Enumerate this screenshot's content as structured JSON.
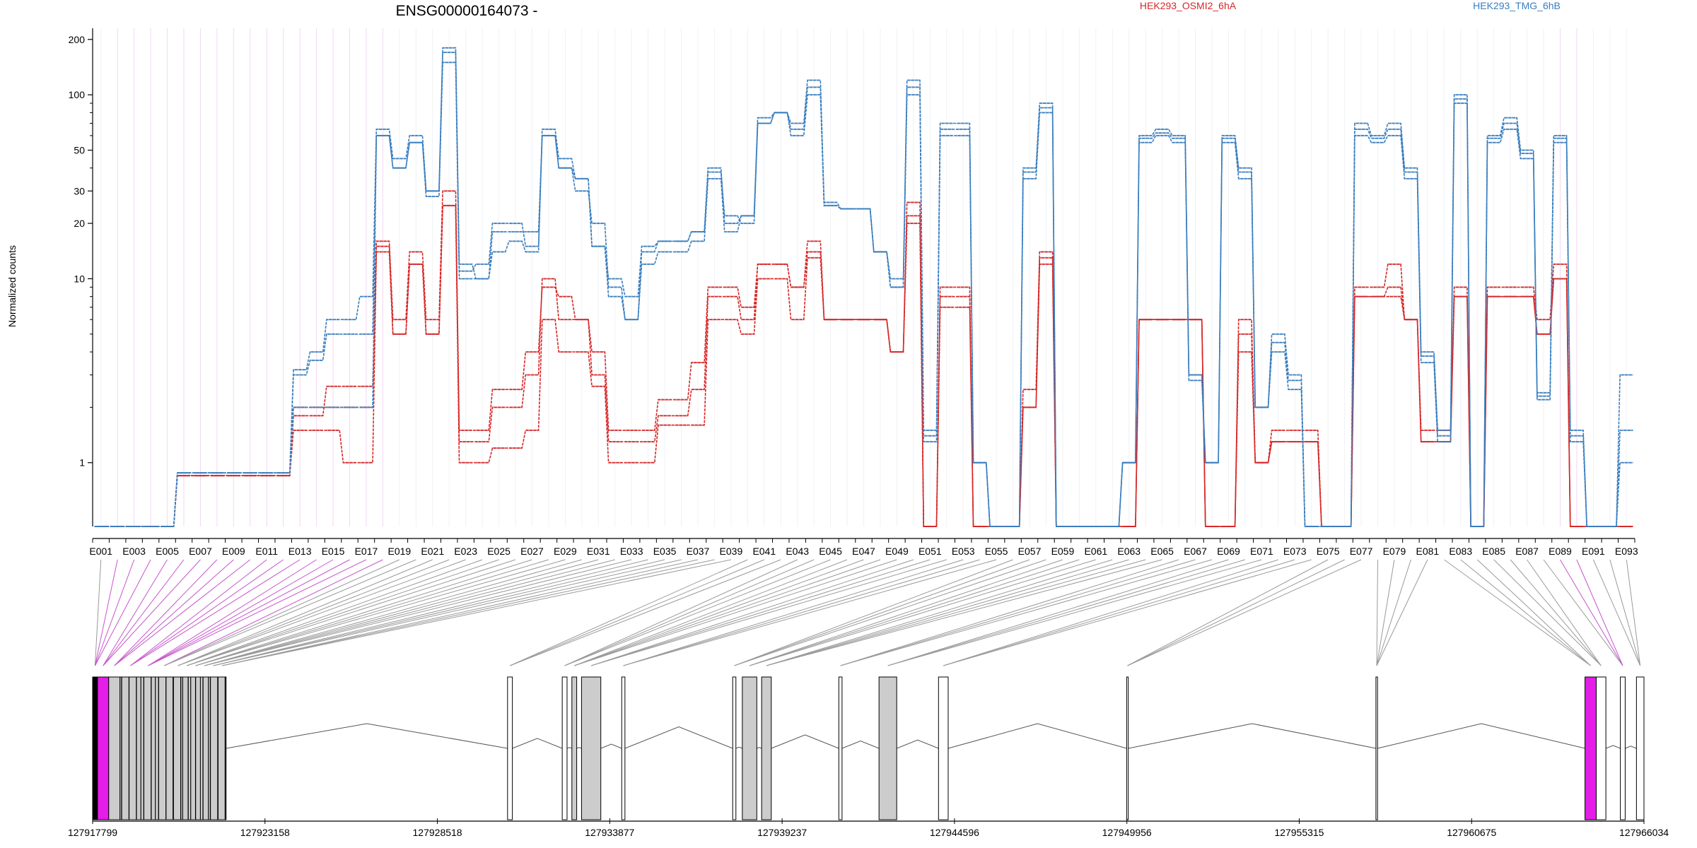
{
  "chart_data": {
    "type": "line",
    "title": "ENSG00000164073 -",
    "ylabel": "Normalized counts",
    "xlabel": "",
    "yscale": "log",
    "ylim": [
      0.45,
      230
    ],
    "yticks": [
      1,
      10,
      20,
      30,
      50,
      100,
      200
    ],
    "grid": "vertical lines at each exon",
    "legend_position": "top",
    "colors": {
      "HEK293_OSMI2_6hA": "#d62728",
      "HEK293_TMG_6hB": "#3a7ebf",
      "exon_fill": "#cccccc",
      "highlight_exon": "#e41de8"
    },
    "legend": [
      {
        "label": "HEK293_OSMI2_6hA",
        "color": "#d62728"
      },
      {
        "label": "HEK293_TMG_6hB",
        "color": "#3a7ebf"
      }
    ],
    "x_tick_labels": [
      "E001",
      "E003",
      "E005",
      "E007",
      "E009",
      "E011",
      "E013",
      "E015",
      "E017",
      "E019",
      "E021",
      "E023",
      "E025",
      "E027",
      "E029",
      "E031",
      "E033",
      "E035",
      "E037",
      "E039",
      "E041",
      "E043",
      "E045",
      "E047",
      "E049",
      "E051",
      "E053",
      "E055",
      "E057",
      "E059",
      "E061",
      "E063",
      "E065",
      "E067",
      "E069",
      "E071",
      "E073",
      "E075",
      "E077",
      "E079",
      "E081",
      "E083",
      "E085",
      "E087",
      "E089",
      "E091",
      "E093"
    ],
    "exon_count": 93,
    "zero_floor_value": 0.45,
    "series": [
      {
        "name": "HEK293_OSMI2_6hA",
        "group": "OSMI2",
        "values": [
          0.45,
          0.45,
          0.45,
          0.45,
          0.45,
          0.85,
          0.85,
          0.85,
          0.85,
          0.85,
          0.85,
          0.85,
          2.0,
          2.0,
          2.0,
          2.0,
          2.0,
          16,
          6,
          14,
          6,
          30,
          1.5,
          1.5,
          2.5,
          2.5,
          4.0,
          9,
          8,
          6,
          4,
          1.5,
          1.5,
          1.5,
          2.2,
          2.2,
          3.5,
          9,
          9,
          7,
          12,
          12,
          9,
          16,
          6,
          6,
          6,
          6,
          4.0,
          26,
          0.45,
          9,
          9,
          0.45,
          0.45,
          0.45,
          2.5,
          14,
          0.45,
          0.45,
          0.45,
          0.45,
          0.45,
          6,
          6,
          6,
          6,
          0.45,
          0.45,
          6,
          1.0,
          1.5,
          1.5,
          1.5,
          0.45,
          0.45,
          9,
          9,
          12,
          6,
          1.5,
          1.5,
          9,
          0.45,
          9,
          9,
          9,
          6,
          12,
          0.45,
          0.45,
          0.45,
          0.45
        ]
      },
      {
        "name": "HEK293_OSMI2_6hA",
        "group": "OSMI2",
        "values": [
          0.45,
          0.45,
          0.45,
          0.45,
          0.45,
          0.85,
          0.85,
          0.85,
          0.85,
          0.85,
          0.85,
          0.85,
          1.8,
          1.8,
          2.6,
          2.6,
          2.6,
          15,
          5,
          12,
          5,
          25,
          1.3,
          1.3,
          2.0,
          2.0,
          3.0,
          10,
          6,
          6,
          3,
          1.3,
          1.3,
          1.3,
          1.8,
          1.8,
          2.5,
          8,
          8,
          6,
          12,
          12,
          9,
          14,
          6,
          6,
          6,
          6,
          4.0,
          20,
          0.45,
          8,
          8,
          0.45,
          0.45,
          0.45,
          2.0,
          12,
          0.45,
          0.45,
          0.45,
          0.45,
          0.45,
          6,
          6,
          6,
          6,
          0.45,
          0.45,
          5,
          1.0,
          1.3,
          1.3,
          1.3,
          0.45,
          0.45,
          8,
          8,
          8,
          6,
          1.3,
          1.3,
          8,
          0.45,
          8,
          8,
          8,
          5,
          10,
          0.45,
          0.45,
          0.45,
          0.45
        ]
      },
      {
        "name": "HEK293_OSMI2_6hA",
        "group": "OSMI2",
        "values": [
          0.45,
          0.45,
          0.45,
          0.45,
          0.45,
          0.85,
          0.85,
          0.85,
          0.85,
          0.85,
          0.85,
          0.85,
          1.5,
          1.5,
          1.5,
          1.0,
          1.0,
          14,
          5,
          12,
          5,
          25,
          1.0,
          1.0,
          1.2,
          1.2,
          1.5,
          6,
          4,
          4,
          2.6,
          1.0,
          1.0,
          1.0,
          1.6,
          1.6,
          1.6,
          6,
          6,
          5,
          10,
          10,
          6,
          13,
          6,
          6,
          6,
          6,
          4.0,
          22,
          0.45,
          7,
          7,
          0.45,
          0.45,
          0.45,
          2.0,
          13,
          0.45,
          0.45,
          0.45,
          0.45,
          0.45,
          6,
          6,
          6,
          6,
          0.45,
          0.45,
          4,
          1.0,
          1.3,
          1.3,
          1.3,
          0.45,
          0.45,
          8,
          8,
          9,
          6,
          1.3,
          1.3,
          8,
          0.45,
          8,
          8,
          8,
          5,
          10,
          0.45,
          0.45,
          0.45,
          0.45
        ]
      },
      {
        "name": "HEK293_TMG_6hB",
        "group": "TMG",
        "values": [
          0.45,
          0.45,
          0.45,
          0.45,
          0.45,
          0.88,
          0.88,
          0.88,
          0.88,
          0.88,
          0.88,
          0.88,
          3.2,
          4.0,
          6.0,
          6.0,
          8.0,
          65,
          45,
          60,
          30,
          180,
          12,
          10,
          14,
          16,
          14,
          65,
          45,
          35,
          15,
          10,
          8,
          15,
          16,
          16,
          18,
          40,
          20,
          22,
          70,
          80,
          70,
          120,
          26,
          24,
          24,
          14,
          10,
          120,
          1.5,
          70,
          70,
          1.0,
          0.45,
          0.45,
          40,
          90,
          0.45,
          0.45,
          0.45,
          0.45,
          1.0,
          60,
          65,
          60,
          3.0,
          1.0,
          60,
          40,
          2.0,
          5,
          3.0,
          0.45,
          0.45,
          0.45,
          70,
          60,
          70,
          40,
          4.0,
          1.5,
          100,
          0.45,
          60,
          75,
          50,
          2.4,
          60,
          1.5,
          0.45,
          0.45,
          3.0
        ]
      },
      {
        "name": "HEK293_TMG_6hB",
        "group": "TMG",
        "values": [
          0.45,
          0.45,
          0.45,
          0.45,
          0.45,
          0.88,
          0.88,
          0.88,
          0.88,
          0.88,
          0.88,
          0.88,
          3.0,
          3.6,
          5.0,
          5.0,
          5.0,
          60,
          40,
          55,
          28,
          150,
          10,
          10,
          18,
          18,
          18,
          60,
          40,
          35,
          15,
          8,
          6,
          12,
          14,
          14,
          16,
          35,
          18,
          22,
          75,
          80,
          60,
          100,
          25,
          24,
          24,
          14,
          9,
          100,
          1.3,
          60,
          60,
          1.0,
          0.45,
          0.45,
          35,
          80,
          0.45,
          0.45,
          0.45,
          0.45,
          1.0,
          55,
          60,
          55,
          2.8,
          1.0,
          55,
          35,
          2.0,
          4,
          2.5,
          0.45,
          0.45,
          0.45,
          60,
          55,
          60,
          35,
          3.5,
          1.3,
          90,
          0.45,
          55,
          65,
          45,
          2.2,
          55,
          1.3,
          0.45,
          0.45,
          1.5
        ]
      },
      {
        "name": "HEK293_TMG_6hB",
        "group": "TMG",
        "values": [
          0.45,
          0.45,
          0.45,
          0.45,
          0.45,
          0.88,
          0.88,
          0.88,
          0.88,
          0.88,
          0.88,
          0.88,
          2.0,
          2.0,
          2.0,
          2.0,
          2.0,
          60,
          40,
          55,
          30,
          170,
          11,
          12,
          20,
          20,
          15,
          60,
          40,
          30,
          20,
          9,
          6,
          14,
          16,
          16,
          18,
          38,
          22,
          20,
          70,
          80,
          65,
          110,
          25,
          24,
          24,
          14,
          9,
          110,
          1.4,
          65,
          65,
          1.0,
          0.45,
          0.45,
          38,
          85,
          0.45,
          0.45,
          0.45,
          0.45,
          1.0,
          58,
          62,
          58,
          3.0,
          1.0,
          58,
          38,
          2.0,
          4.5,
          2.8,
          0.45,
          0.45,
          0.45,
          65,
          58,
          65,
          38,
          3.8,
          1.4,
          95,
          0.45,
          58,
          70,
          48,
          2.3,
          58,
          1.4,
          0.45,
          0.45,
          1.0
        ]
      }
    ],
    "genomic_axis": {
      "tick_labels": [
        "127917799",
        "127923158",
        "127928518",
        "127933877",
        "127939237",
        "127944596",
        "127949956",
        "127955315",
        "127960675",
        "127966034"
      ],
      "start": 127917799,
      "end": 127966034
    },
    "gene_model": {
      "note": "Exon positions in genomic coordinates (bp); highlighted exons drawn magenta",
      "exons": [
        {
          "start": 127917799,
          "end": 127917950,
          "fill": "black"
        },
        {
          "start": 127917950,
          "end": 127918300,
          "fill": "highlight"
        },
        {
          "start": 127918300,
          "end": 127918650,
          "fill": "gray"
        },
        {
          "start": 127918650,
          "end": 127919300,
          "fill": "gray"
        },
        {
          "start": 127919300,
          "end": 127919750,
          "fill": "gray"
        },
        {
          "start": 127919750,
          "end": 127920300,
          "fill": "gray"
        },
        {
          "start": 127920300,
          "end": 127920600,
          "fill": "gray"
        },
        {
          "start": 127920600,
          "end": 127920850,
          "fill": "gray"
        },
        {
          "start": 127920850,
          "end": 127921150,
          "fill": "gray"
        },
        {
          "start": 127921150,
          "end": 127921400,
          "fill": "gray"
        },
        {
          "start": 127921400,
          "end": 127921700,
          "fill": "gray"
        },
        {
          "start": 127921700,
          "end": 127921950,
          "fill": "gray"
        },
        {
          "start": 127930700,
          "end": 127930850,
          "fill": "white"
        },
        {
          "start": 127932400,
          "end": 127932550,
          "fill": "white"
        },
        {
          "start": 127932700,
          "end": 127932850,
          "fill": "gray"
        },
        {
          "start": 127933000,
          "end": 127933600,
          "fill": "gray"
        },
        {
          "start": 127934250,
          "end": 127934350,
          "fill": "white"
        },
        {
          "start": 127937700,
          "end": 127937800,
          "fill": "white"
        },
        {
          "start": 127938000,
          "end": 127938450,
          "fill": "gray"
        },
        {
          "start": 127938600,
          "end": 127938900,
          "fill": "gray"
        },
        {
          "start": 127941000,
          "end": 127941100,
          "fill": "white"
        },
        {
          "start": 127942250,
          "end": 127942800,
          "fill": "gray"
        },
        {
          "start": 127944100,
          "end": 127944400,
          "fill": "white"
        },
        {
          "start": 127949950,
          "end": 127950000,
          "fill": "white"
        },
        {
          "start": 127957700,
          "end": 127957750,
          "fill": "white"
        },
        {
          "start": 127964200,
          "end": 127964550,
          "fill": "highlight"
        },
        {
          "start": 127964550,
          "end": 127964850,
          "fill": "white"
        },
        {
          "start": 127965300,
          "end": 127965450,
          "fill": "white"
        },
        {
          "start": 127965800,
          "end": 127966034,
          "fill": "white"
        }
      ]
    }
  }
}
